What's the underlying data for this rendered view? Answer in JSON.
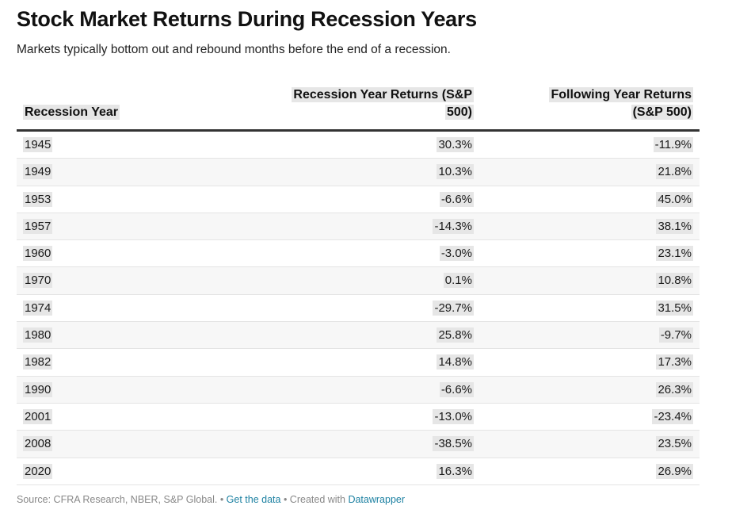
{
  "title": "Stock Market Returns During Recession Years",
  "subtitle": "Markets typically bottom out and rebound months before the end of a recession.",
  "footer": {
    "source": "Source: CFRA Research, NBER, S&P Global. • ",
    "get_data": "Get the data",
    "created": " • Created with ",
    "datawrapper": "Datawrapper"
  },
  "chart_data": {
    "type": "table",
    "columns": [
      "Recession Year",
      "Recession Year Returns (S&P 500)",
      "Following Year Returns (S&P 500)"
    ],
    "column_header_lines": {
      "recession_returns": [
        "Recession Year Returns (S&P",
        "500)"
      ],
      "following_returns": [
        "Following Year Returns",
        "(S&P 500)"
      ]
    },
    "rows": [
      [
        "1945",
        "30.3%",
        "-11.9%"
      ],
      [
        "1949",
        "10.3%",
        "21.8%"
      ],
      [
        "1953",
        "-6.6%",
        "45.0%"
      ],
      [
        "1957",
        "-14.3%",
        "38.1%"
      ],
      [
        "1960",
        "-3.0%",
        "23.1%"
      ],
      [
        "1970",
        "0.1%",
        "10.8%"
      ],
      [
        "1974",
        "-29.7%",
        "31.5%"
      ],
      [
        "1980",
        "25.8%",
        "-9.7%"
      ],
      [
        "1982",
        "14.8%",
        "17.3%"
      ],
      [
        "1990",
        "-6.6%",
        "26.3%"
      ],
      [
        "2001",
        "-13.0%",
        "-23.4%"
      ],
      [
        "2008",
        "-38.5%",
        "23.5%"
      ],
      [
        "2020",
        "16.3%",
        "26.9%"
      ]
    ]
  }
}
